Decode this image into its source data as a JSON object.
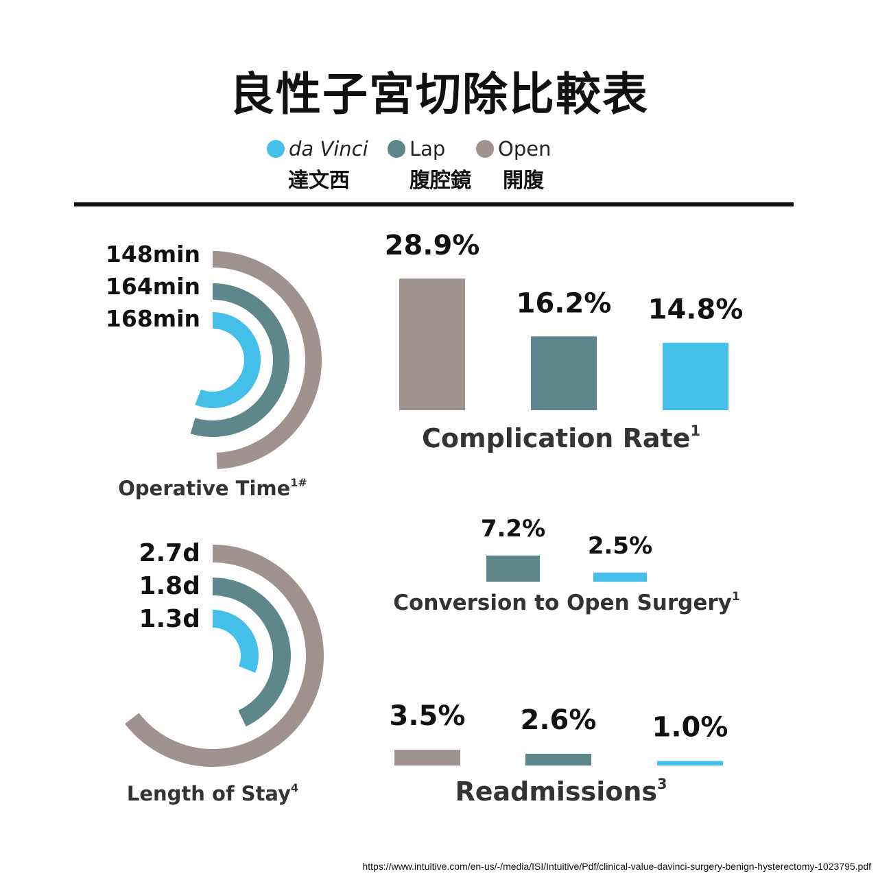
{
  "title": "良性子宮切除比較表",
  "legend": [
    {
      "name": "da Vinci",
      "sub": "達文西",
      "color": "#44bfe9"
    },
    {
      "name": "Lap",
      "sub": "腹腔鏡",
      "color": "#5d878a"
    },
    {
      "name": "Open",
      "sub": "開腹",
      "color": "#a0928e"
    }
  ],
  "chart_data": [
    {
      "type": "radial-bar",
      "title": "Operative Time",
      "title_sup": "1#",
      "unit": "min",
      "series": [
        {
          "name": "Open",
          "value": 148,
          "label": "148min",
          "color": "#a0928e"
        },
        {
          "name": "Lap",
          "value": 164,
          "label": "164min",
          "color": "#5d878a"
        },
        {
          "name": "da Vinci",
          "value": 168,
          "label": "168min",
          "color": "#44bfe9"
        }
      ]
    },
    {
      "type": "bar",
      "title": "Complication Rate",
      "title_sup": "1",
      "unit": "%",
      "series": [
        {
          "name": "Open",
          "value": 28.9,
          "label": "28.9%",
          "color": "#a0928e"
        },
        {
          "name": "Lap",
          "value": 16.2,
          "label": "16.2%",
          "color": "#5d878a"
        },
        {
          "name": "da Vinci",
          "value": 14.8,
          "label": "14.8%",
          "color": "#44bfe9"
        }
      ]
    },
    {
      "type": "radial-bar",
      "title": "Length of Stay",
      "title_sup": "4",
      "unit": "d",
      "series": [
        {
          "name": "Open",
          "value": 2.7,
          "label": "2.7d",
          "color": "#a0928e"
        },
        {
          "name": "Lap",
          "value": 1.8,
          "label": "1.8d",
          "color": "#5d878a"
        },
        {
          "name": "da Vinci",
          "value": 1.3,
          "label": "1.3d",
          "color": "#44bfe9"
        }
      ]
    },
    {
      "type": "bar",
      "title": "Conversion to Open Surgery",
      "title_sup": "1",
      "unit": "%",
      "series": [
        {
          "name": "Lap",
          "value": 7.2,
          "label": "7.2%",
          "color": "#5d878a"
        },
        {
          "name": "da Vinci",
          "value": 2.5,
          "label": "2.5%",
          "color": "#44bfe9"
        }
      ]
    },
    {
      "type": "bar",
      "title": "Readmissions",
      "title_sup": "3",
      "unit": "%",
      "series": [
        {
          "name": "Open",
          "value": 3.5,
          "label": "3.5%",
          "color": "#a0928e"
        },
        {
          "name": "Lap",
          "value": 2.6,
          "label": "2.6%",
          "color": "#5d878a"
        },
        {
          "name": "da Vinci",
          "value": 1.0,
          "label": "1.0%",
          "color": "#44bfe9"
        }
      ]
    }
  ],
  "source": "https://www.intuitive.com/en-us/-/media/ISI/Intuitive/Pdf/clinical-value-davinci-surgery-benign-hysterectomy-1023795.pdf"
}
